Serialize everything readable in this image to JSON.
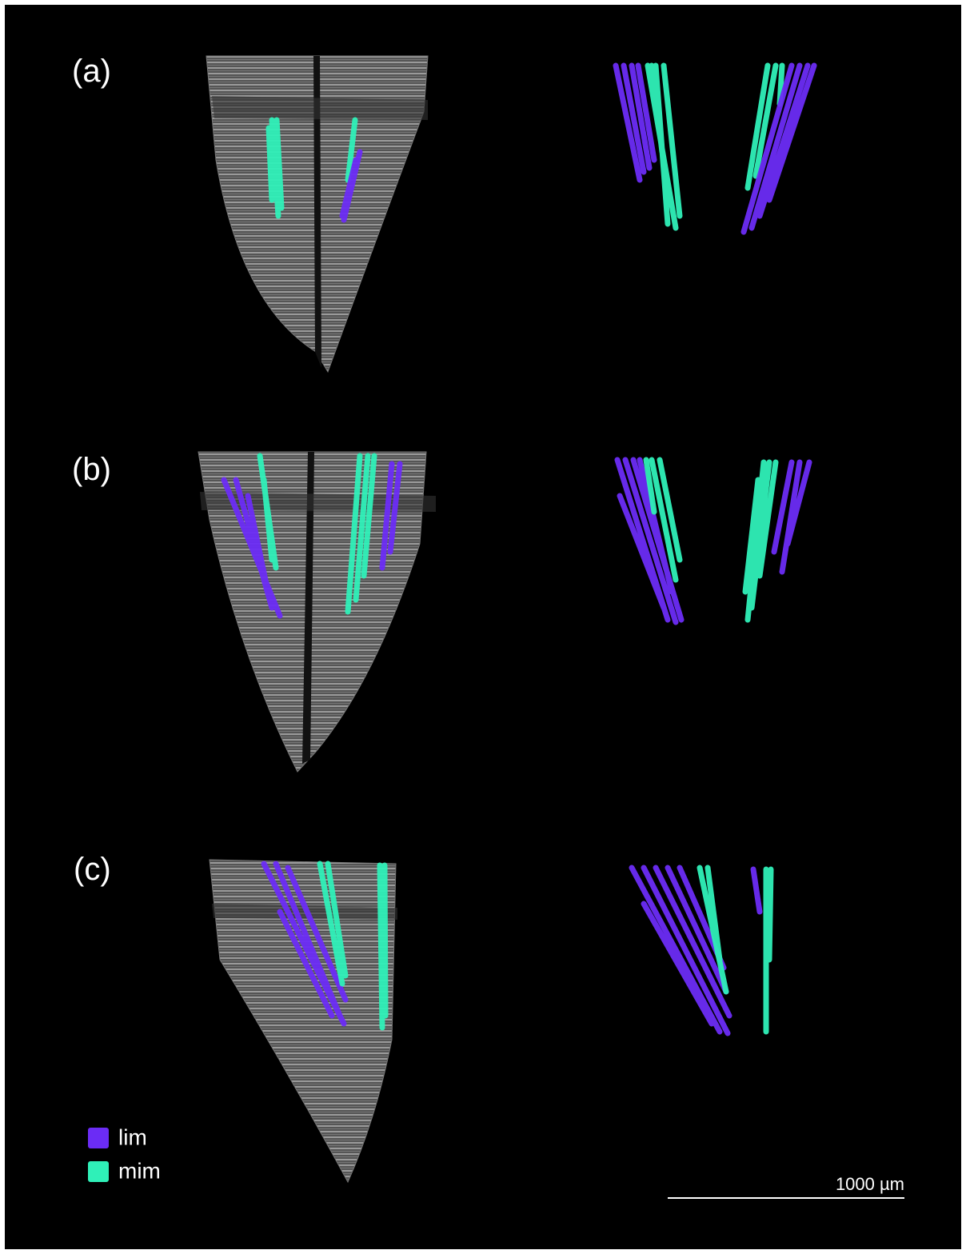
{
  "panels": [
    {
      "label": "(a)"
    },
    {
      "label": "(b)"
    },
    {
      "label": "(c)"
    }
  ],
  "legend": [
    {
      "label": "lim",
      "color": "#6b2cf5"
    },
    {
      "label": "mim",
      "color": "#2ff0b8"
    }
  ],
  "scale_bar": {
    "label": "1000 µm"
  }
}
